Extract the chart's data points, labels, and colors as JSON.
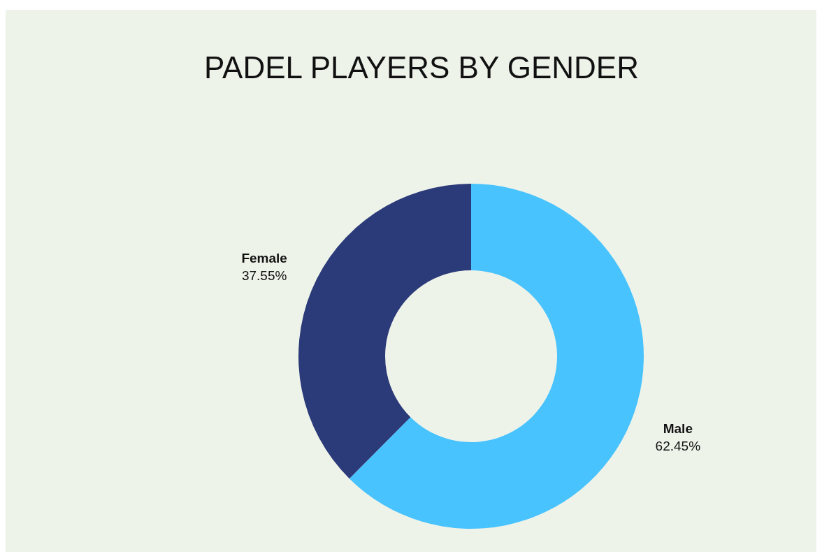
{
  "chart_data": {
    "type": "donut",
    "title": "PADEL PLAYERS BY GENDER",
    "categories": [
      "Male",
      "Female"
    ],
    "values": [
      62.45,
      37.55
    ],
    "colors": [
      "#48c3fd",
      "#2b3a78"
    ],
    "value_labels": [
      "62.45%",
      "37.55%"
    ]
  }
}
